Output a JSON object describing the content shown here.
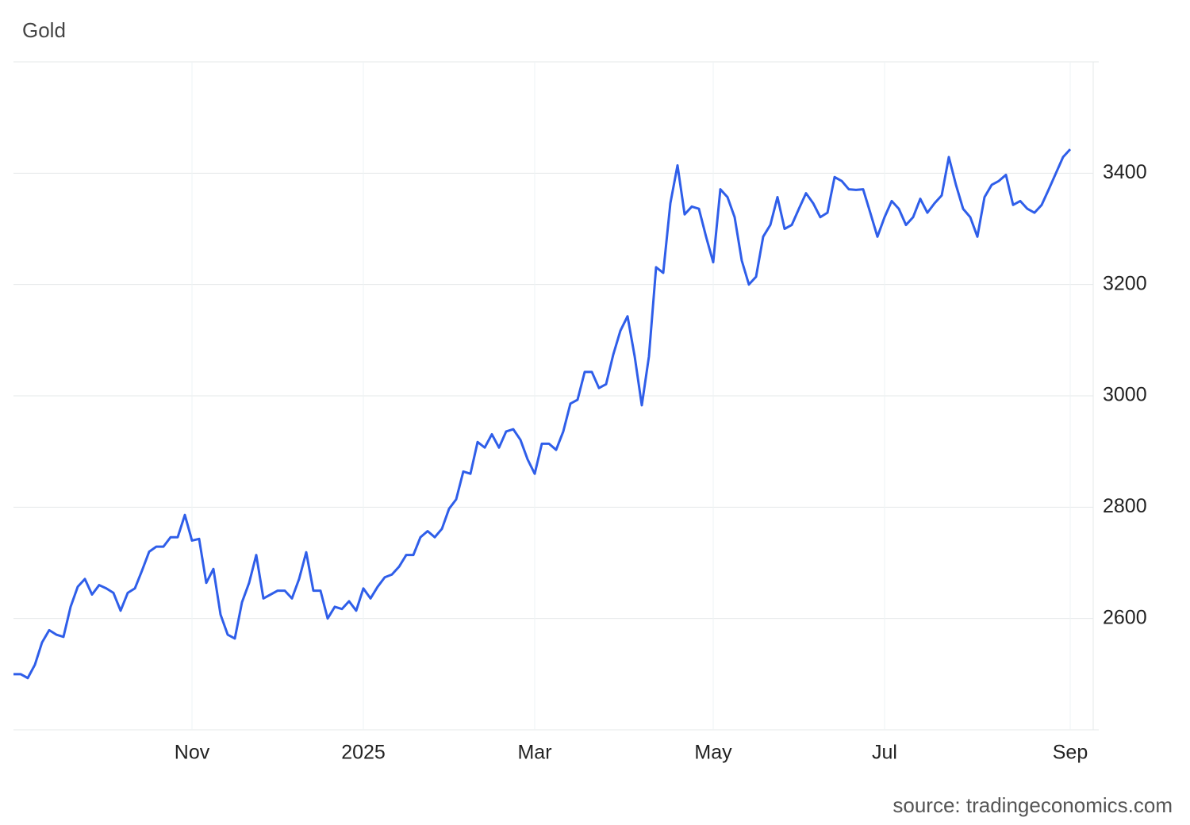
{
  "chart_data": {
    "type": "line",
    "title": "Gold",
    "source": "source: tradingeconomics.com",
    "categories": [
      null,
      null,
      null,
      null,
      null,
      null,
      null,
      null,
      null,
      null,
      null,
      null,
      null,
      null,
      null,
      null,
      null,
      null,
      null,
      null,
      null,
      null,
      null,
      null,
      null,
      "Nov",
      null,
      null,
      null,
      null,
      null,
      null,
      null,
      null,
      null,
      null,
      null,
      null,
      null,
      null,
      null,
      null,
      null,
      null,
      null,
      null,
      null,
      null,
      null,
      "2025",
      null,
      null,
      null,
      null,
      null,
      null,
      null,
      null,
      null,
      null,
      null,
      null,
      null,
      null,
      null,
      null,
      null,
      null,
      null,
      null,
      null,
      null,
      null,
      "Mar",
      null,
      null,
      null,
      null,
      null,
      null,
      null,
      null,
      null,
      null,
      null,
      null,
      null,
      null,
      null,
      null,
      null,
      null,
      null,
      null,
      null,
      null,
      null,
      null,
      "May",
      null,
      null,
      null,
      null,
      null,
      null,
      null,
      null,
      null,
      null,
      null,
      null,
      null,
      null,
      null,
      null,
      null,
      null,
      null,
      null,
      null,
      null,
      null,
      "Jul",
      null,
      null,
      null,
      null,
      null,
      null,
      null,
      null,
      null,
      null,
      null,
      null,
      null,
      null,
      null,
      null,
      null,
      null,
      null,
      null,
      null,
      null,
      null,
      null,
      null,
      "Sep"
    ],
    "series": [
      {
        "name": "Gold",
        "color": "#2f5ee9",
        "values": [
          2500,
          2500,
          2493,
          2517,
          2557,
          2579,
          2571,
          2567,
          2621,
          2657,
          2671,
          2643,
          2660,
          2654,
          2646,
          2614,
          2646,
          2654,
          2686,
          2720,
          2729,
          2729,
          2746,
          2746,
          2786,
          2740,
          2743,
          2664,
          2689,
          2607,
          2571,
          2564,
          2629,
          2664,
          2714,
          2636,
          2643,
          2650,
          2650,
          2636,
          2671,
          2719,
          2650,
          2650,
          2600,
          2621,
          2617,
          2631,
          2614,
          2654,
          2636,
          2657,
          2674,
          2679,
          2693,
          2714,
          2714,
          2746,
          2757,
          2746,
          2761,
          2797,
          2814,
          2864,
          2860,
          2917,
          2907,
          2931,
          2907,
          2936,
          2940,
          2921,
          2886,
          2860,
          2914,
          2914,
          2903,
          2936,
          2986,
          2993,
          3043,
          3043,
          3014,
          3021,
          3074,
          3117,
          3143,
          3071,
          2983,
          3071,
          3231,
          3221,
          3346,
          3414,
          3326,
          3340,
          3336,
          3286,
          3240,
          3371,
          3357,
          3321,
          3243,
          3200,
          3214,
          3286,
          3307,
          3357,
          3300,
          3307,
          3336,
          3364,
          3346,
          3321,
          3329,
          3393,
          3386,
          3371,
          3370,
          3371,
          3329,
          3286,
          3321,
          3350,
          3336,
          3307,
          3321,
          3354,
          3329,
          3346,
          3360,
          3429,
          3379,
          3336,
          3321,
          3286,
          3357,
          3379,
          3386,
          3397,
          3343,
          3350,
          3336,
          3329,
          3343,
          3371,
          3400,
          3429,
          3443
        ]
      }
    ],
    "ylim": [
      2400,
      3600
    ],
    "yticks": [
      2600,
      2800,
      3000,
      3200,
      3400
    ],
    "grid": true
  }
}
